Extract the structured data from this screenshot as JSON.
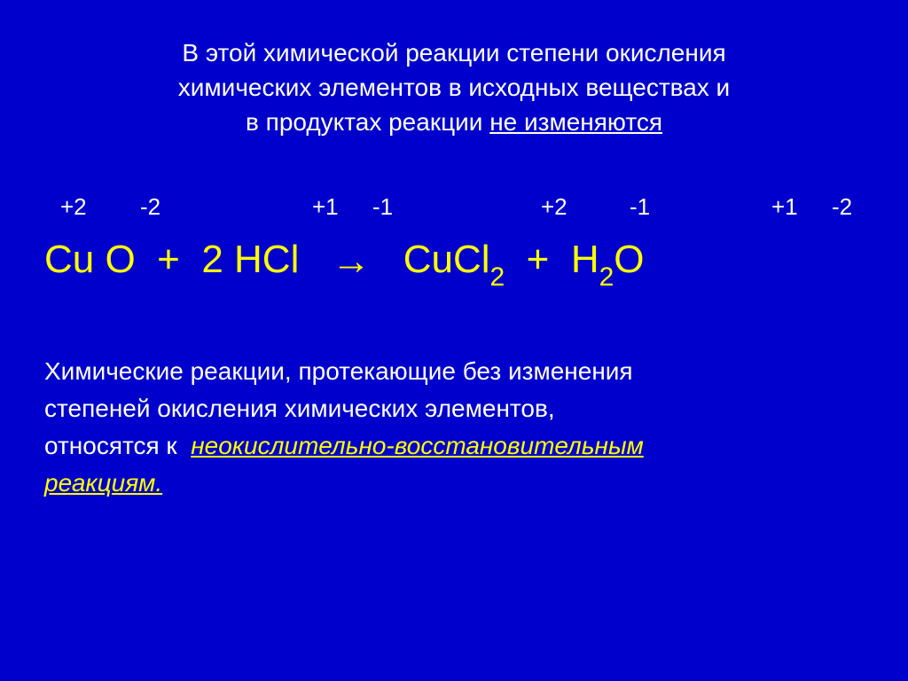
{
  "colors": {
    "background": "#0000cc",
    "text_white": "#ffffff",
    "text_yellow": "#ffff00"
  },
  "typography": {
    "intro_fontsize": 28,
    "equation_fontsize": 44,
    "oxidation_fontsize": 26,
    "conclusion_fontsize": 28,
    "font_family": "Arial"
  },
  "intro": {
    "line1": "В этой химической реакции степени окисления",
    "line2": "химических элементов в исходных веществах и",
    "line3_a": "в продуктах реакции ",
    "line3_b": "не изменяются"
  },
  "oxidation_states": {
    "cu1": "+2",
    "o1": "-2",
    "h1": "+1",
    "cl1": "-1",
    "cu2": "+2",
    "cl2": "-1",
    "h2": "+1",
    "o2": "-2",
    "positions": {
      "cu1": 18,
      "o1": 108,
      "h1": 302,
      "cl1": 370,
      "cu2": 560,
      "cl2": 660,
      "h2": 820,
      "o2": 888
    }
  },
  "equation": {
    "reactant1_a": "Cu",
    "reactant1_b": "O",
    "gap": " ",
    "plus1": "  +  ",
    "coeff": "2 ",
    "reactant2_a": "H",
    "reactant2_b": "Cl",
    "arrow_gap_l": "   ",
    "arrow": "→",
    "arrow_gap_r": "   ",
    "product1_a": "Cu",
    "product1_b": "Cl",
    "sub1": "2",
    "plus2": "  +  ",
    "product2_a": "H",
    "sub2": "2",
    "product2_b": "O"
  },
  "conclusion": {
    "line1": "Химические реакции, протекающие без изменения",
    "line2": "степеней окисления химических элементов,",
    "line3_a": "относятся к  ",
    "highlight1": "неокислительно-восстановительным",
    "highlight2": "реакциям."
  }
}
